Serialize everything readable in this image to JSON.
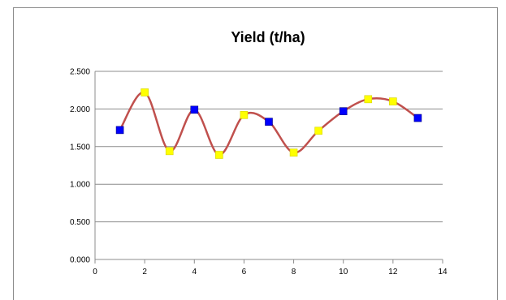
{
  "chart_data": {
    "type": "scatter",
    "title": "Yield (t/ha)",
    "xlabel": "",
    "ylabel": "",
    "xlim": [
      0,
      14
    ],
    "ylim": [
      0,
      2.5
    ],
    "x_ticks": [
      "0",
      "2",
      "4",
      "6",
      "8",
      "10",
      "12",
      "14"
    ],
    "y_ticks": [
      "0.000",
      "0.500",
      "1.000",
      "1.500",
      "2.000",
      "2.500"
    ],
    "grid": "horizontal",
    "legend": "none",
    "line": {
      "style": "smoothed",
      "color": "#C0504D"
    },
    "series": [
      {
        "x": [
          1,
          2,
          3,
          4,
          5,
          6,
          7,
          8,
          9,
          10,
          11,
          12,
          13
        ],
        "y": [
          1.72,
          2.22,
          1.44,
          1.99,
          1.39,
          1.92,
          1.83,
          1.42,
          1.71,
          1.97,
          2.13,
          2.1,
          1.88
        ],
        "marker_colors": [
          "#0000FF",
          "#FFFF00",
          "#FFFF00",
          "#0000FF",
          "#FFFF00",
          "#FFFF00",
          "#0000FF",
          "#FFFF00",
          "#FFFF00",
          "#0000FF",
          "#FFFF00",
          "#FFFF00",
          "#0000FF"
        ]
      }
    ]
  }
}
